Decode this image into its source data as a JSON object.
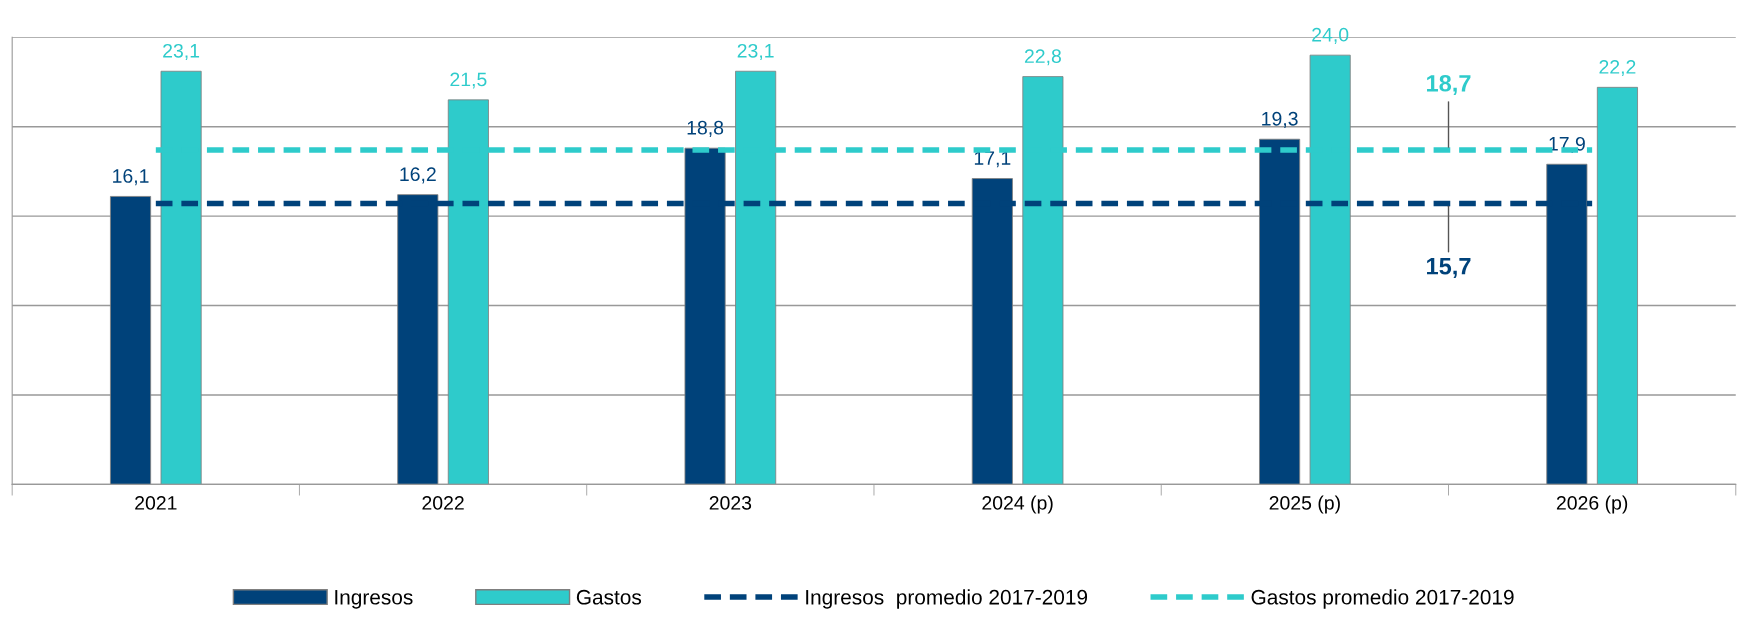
{
  "chart_data": {
    "type": "bar",
    "categories": [
      "2021",
      "2022",
      "2023",
      "2024 (p)",
      "2025 (p)",
      "2026 (p)"
    ],
    "series": [
      {
        "name": "Ingresos",
        "color": "#00427a",
        "values": [
          16.1,
          16.2,
          18.8,
          17.1,
          19.3,
          17.9
        ],
        "value_labels": [
          "16,1",
          "16,2",
          "18,8",
          "17,1",
          "19,3",
          "17,9"
        ]
      },
      {
        "name": "Gastos",
        "color": "#2ecbcb",
        "values": [
          23.1,
          21.5,
          23.1,
          22.8,
          24.0,
          22.2
        ],
        "value_labels": [
          "23,1",
          "21,5",
          "23,1",
          "22,8",
          "24,0",
          "22,2"
        ]
      },
      {
        "name": "Ingresos  promedio 2017-2019",
        "type": "line",
        "line_style": "dashed",
        "color": "#00427a",
        "values": [
          15.7,
          15.7,
          15.7,
          15.7,
          15.7,
          15.7
        ]
      },
      {
        "name": "Gastos promedio 2017-2019",
        "type": "line",
        "line_style": "dashed",
        "color": "#2ecbcb",
        "values": [
          18.7,
          18.7,
          18.7,
          18.7,
          18.7,
          18.7
        ]
      }
    ],
    "annotations": [
      "15,7",
      "18,7"
    ],
    "ylim": [
      0,
      25
    ],
    "yticks": [
      {
        "value": 0,
        "label": null
      },
      {
        "value": 5,
        "label": null
      },
      {
        "value": 10,
        "label": null
      },
      {
        "value": 15,
        "label": null
      },
      {
        "value": 20,
        "label": null
      },
      {
        "value": 25,
        "label": null
      }
    ],
    "tick_labels": "x",
    "grid": "y",
    "legend": "bottom"
  }
}
